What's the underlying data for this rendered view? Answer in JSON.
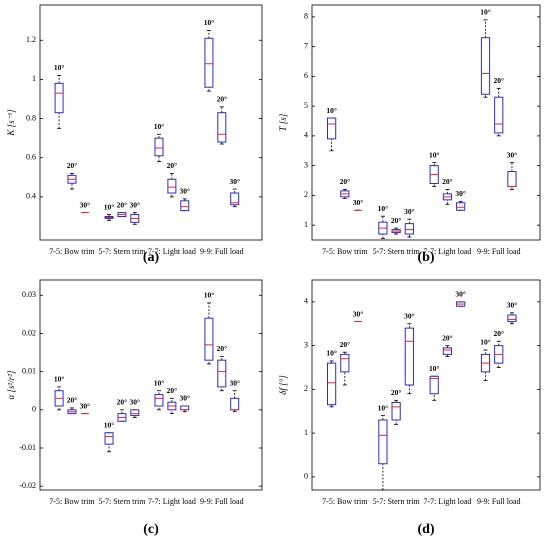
{
  "chart_data": [
    {
      "type": "box",
      "panel_label": "(a)",
      "ylabel": "K [s⁻¹]",
      "categories": [
        "7-5: Bow trim",
        "5-7: Stern trim",
        "7-7: Light load",
        "9-9: Full load"
      ],
      "ylim": [
        0.18,
        1.38
      ],
      "yticks": [
        0.4,
        0.6,
        0.8,
        1,
        1.2
      ],
      "box_color": "#2b2bd6",
      "median_color": "#e8262b",
      "boxes": [
        {
          "label": "10°",
          "whislo": 0.75,
          "q1": 0.83,
          "med": 0.93,
          "q3": 0.98,
          "whishi": 1.02
        },
        {
          "label": "20°",
          "whislo": 0.44,
          "q1": 0.47,
          "med": 0.49,
          "q3": 0.51,
          "whishi": 0.52
        },
        {
          "label": "30°",
          "whislo": 0.32,
          "q1": 0.32,
          "med": 0.32,
          "q3": 0.32,
          "whishi": 0.32
        },
        {
          "label": "10°",
          "whislo": 0.28,
          "q1": 0.29,
          "med": 0.295,
          "q3": 0.3,
          "whishi": 0.31
        },
        {
          "label": "20°",
          "whislo": 0.3,
          "q1": 0.3,
          "med": 0.31,
          "q3": 0.32,
          "whishi": 0.32
        },
        {
          "label": "30°",
          "whislo": 0.26,
          "q1": 0.27,
          "med": 0.29,
          "q3": 0.31,
          "whishi": 0.32
        },
        {
          "label": "10°",
          "whislo": 0.58,
          "q1": 0.61,
          "med": 0.65,
          "q3": 0.7,
          "whishi": 0.72
        },
        {
          "label": "20°",
          "whislo": 0.4,
          "q1": 0.42,
          "med": 0.45,
          "q3": 0.49,
          "whishi": 0.52
        },
        {
          "label": "30°",
          "whislo": 0.33,
          "q1": 0.33,
          "med": 0.35,
          "q3": 0.38,
          "whishi": 0.39
        },
        {
          "label": "10°",
          "whislo": 0.94,
          "q1": 0.96,
          "med": 1.08,
          "q3": 1.21,
          "whishi": 1.25
        },
        {
          "label": "20°",
          "whislo": 0.67,
          "q1": 0.68,
          "med": 0.72,
          "q3": 0.83,
          "whishi": 0.86
        },
        {
          "label": "30°",
          "whislo": 0.35,
          "q1": 0.36,
          "med": 0.37,
          "q3": 0.42,
          "whishi": 0.44
        }
      ]
    },
    {
      "type": "box",
      "panel_label": "(b)",
      "ylabel": "T [s]",
      "categories": [
        "7-5: Bow trim",
        "5-7: Stern trim",
        "7-7: Light load",
        "9-9: Full load"
      ],
      "ylim": [
        0.5,
        8.4
      ],
      "yticks": [
        1,
        2,
        3,
        4,
        5,
        6,
        7,
        8
      ],
      "box_color": "#2b2bd6",
      "median_color": "#e8262b",
      "boxes": [
        {
          "label": "10°",
          "whislo": 3.5,
          "q1": 3.9,
          "med": 4.4,
          "q3": 4.6,
          "whishi": 4.6
        },
        {
          "label": "20°",
          "whislo": 1.9,
          "q1": 1.95,
          "med": 2.05,
          "q3": 2.15,
          "whishi": 2.2
        },
        {
          "label": "30°",
          "whislo": 1.5,
          "q1": 1.5,
          "med": 1.5,
          "q3": 1.5,
          "whishi": 1.5
        },
        {
          "label": "10°",
          "whislo": 0.55,
          "q1": 0.7,
          "med": 0.9,
          "q3": 1.1,
          "whishi": 1.3
        },
        {
          "label": "20°",
          "whislo": 0.7,
          "q1": 0.75,
          "med": 0.8,
          "q3": 0.85,
          "whishi": 0.9
        },
        {
          "label": "30°",
          "whislo": 0.6,
          "q1": 0.7,
          "med": 0.85,
          "q3": 1.05,
          "whishi": 1.2
        },
        {
          "label": "10°",
          "whislo": 2.3,
          "q1": 2.4,
          "med": 2.7,
          "q3": 3.0,
          "whishi": 3.1
        },
        {
          "label": "20°",
          "whislo": 1.7,
          "q1": 1.85,
          "med": 1.95,
          "q3": 2.05,
          "whishi": 2.2
        },
        {
          "label": "30°",
          "whislo": 1.5,
          "q1": 1.5,
          "med": 1.6,
          "q3": 1.75,
          "whishi": 1.8
        },
        {
          "label": "10°",
          "whislo": 5.3,
          "q1": 5.4,
          "med": 6.1,
          "q3": 7.3,
          "whishi": 7.9
        },
        {
          "label": "20°",
          "whislo": 4.0,
          "q1": 4.1,
          "med": 4.4,
          "q3": 5.3,
          "whishi": 5.6
        },
        {
          "label": "30°",
          "whislo": 2.2,
          "q1": 2.3,
          "med": 2.3,
          "q3": 2.8,
          "whishi": 3.1
        }
      ]
    },
    {
      "type": "box",
      "panel_label": "(c)",
      "ylabel": "α [s²/r²]",
      "categories": [
        "7-5: Bow trim",
        "5-7: Stern trim",
        "7-7: Light load",
        "9-9: Full load"
      ],
      "ylim": [
        -0.021,
        0.034
      ],
      "yticks": [
        -0.02,
        -0.01,
        0,
        0.01,
        0.02,
        0.03
      ],
      "box_color": "#2b2bd6",
      "median_color": "#e8262b",
      "boxes": [
        {
          "label": "10°",
          "whislo": 0,
          "q1": 0.001,
          "med": 0.003,
          "q3": 0.005,
          "whishi": 0.006
        },
        {
          "label": "20°",
          "whislo": -0.001,
          "q1": -0.001,
          "med": -0.0005,
          "q3": 0,
          "whishi": 0.0005
        },
        {
          "label": "30°",
          "whislo": -0.001,
          "q1": -0.001,
          "med": -0.001,
          "q3": -0.001,
          "whishi": -0.001
        },
        {
          "label": "10°",
          "whislo": -0.011,
          "q1": -0.009,
          "med": -0.007,
          "q3": -0.006,
          "whishi": -0.006
        },
        {
          "label": "20°",
          "whislo": -0.003,
          "q1": -0.003,
          "med": -0.002,
          "q3": -0.001,
          "whishi": 0
        },
        {
          "label": "30°",
          "whislo": -0.002,
          "q1": -0.0015,
          "med": -0.001,
          "q3": 0,
          "whishi": 0
        },
        {
          "label": "10°",
          "whislo": 0,
          "q1": 0.001,
          "med": 0.003,
          "q3": 0.004,
          "whishi": 0.005
        },
        {
          "label": "20°",
          "whislo": -0.001,
          "q1": 0,
          "med": 0.001,
          "q3": 0.002,
          "whishi": 0.003
        },
        {
          "label": "30°",
          "whislo": -0.0005,
          "q1": 0,
          "med": 0,
          "q3": 0.001,
          "whishi": 0.001
        },
        {
          "label": "10°",
          "whislo": 0.012,
          "q1": 0.013,
          "med": 0.017,
          "q3": 0.024,
          "whishi": 0.028
        },
        {
          "label": "20°",
          "whislo": 0.005,
          "q1": 0.006,
          "med": 0.01,
          "q3": 0.013,
          "whishi": 0.014
        },
        {
          "label": "30°",
          "whislo": -0.0005,
          "q1": 0,
          "med": 0,
          "q3": 0.003,
          "whishi": 0.005
        }
      ]
    },
    {
      "type": "box",
      "panel_label": "(d)",
      "ylabel": "δf [°]",
      "categories": [
        "7-5: Bow trim",
        "5-7: Stern trim",
        "7-7: Light load",
        "9-9: Full load"
      ],
      "ylim": [
        -0.3,
        4.5
      ],
      "yticks": [
        0,
        1,
        2,
        3,
        4
      ],
      "box_color": "#2b2bd6",
      "median_color": "#e8262b",
      "boxes": [
        {
          "label": "10°",
          "whislo": 1.6,
          "q1": 1.65,
          "med": 2.15,
          "q3": 2.6,
          "whishi": 2.65
        },
        {
          "label": "20°",
          "whislo": 2.1,
          "q1": 2.4,
          "med": 2.7,
          "q3": 2.8,
          "whishi": 2.85
        },
        {
          "label": "30°",
          "whislo": 3.55,
          "q1": 3.55,
          "med": 3.55,
          "q3": 3.55,
          "whishi": 3.55
        },
        {
          "label": "10°",
          "whislo": -0.3,
          "q1": 0.3,
          "med": 0.95,
          "q3": 1.3,
          "whishi": 1.4
        },
        {
          "label": "20°",
          "whislo": 1.2,
          "q1": 1.3,
          "med": 1.6,
          "q3": 1.7,
          "whishi": 1.75
        },
        {
          "label": "30°",
          "whislo": 1.9,
          "q1": 2.1,
          "med": 3.1,
          "q3": 3.4,
          "whishi": 3.5
        },
        {
          "label": "10°",
          "whislo": 1.75,
          "q1": 1.9,
          "med": 2.25,
          "q3": 2.3,
          "whishi": 2.3
        },
        {
          "label": "20°",
          "whislo": 2.75,
          "q1": 2.8,
          "med": 2.9,
          "q3": 2.95,
          "whishi": 3.0
        },
        {
          "label": "30°",
          "whislo": 3.9,
          "q1": 3.9,
          "med": 3.95,
          "q3": 4.0,
          "whishi": 4.0
        },
        {
          "label": "10°",
          "whislo": 2.2,
          "q1": 2.4,
          "med": 2.6,
          "q3": 2.8,
          "whishi": 2.9
        },
        {
          "label": "20°",
          "whislo": 2.5,
          "q1": 2.6,
          "med": 2.8,
          "q3": 3.0,
          "whishi": 3.1
        },
        {
          "label": "30°",
          "whislo": 3.5,
          "q1": 3.55,
          "med": 3.6,
          "q3": 3.7,
          "whishi": 3.75
        }
      ]
    }
  ]
}
